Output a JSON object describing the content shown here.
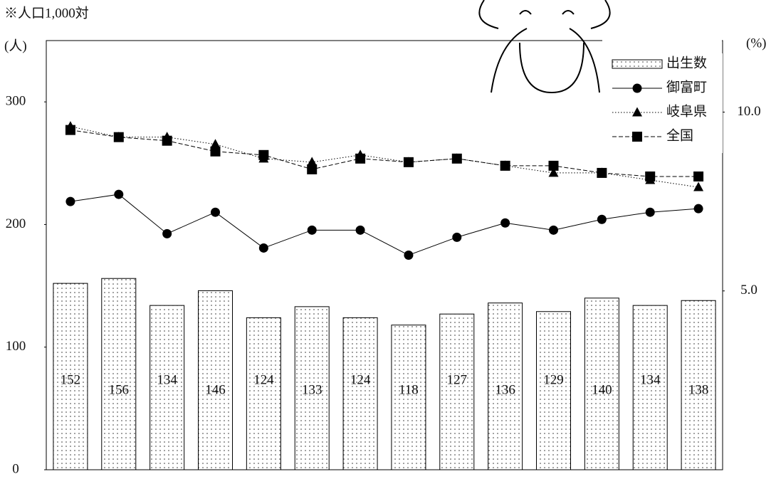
{
  "chart_data": {
    "type": "bar",
    "note": "※人口1,000対",
    "ylabel": "(人)",
    "y2label": "(%)",
    "categories": [
      null,
      null,
      null,
      null,
      null,
      null,
      null,
      null,
      null,
      null,
      null,
      null,
      null,
      null
    ],
    "ylim": [
      0,
      350
    ],
    "yticks": [
      0,
      100,
      200,
      300
    ],
    "y2lim": [
      0,
      12
    ],
    "y2ticks": [
      {
        "value": 5,
        "label": "5.0"
      },
      {
        "value": 10,
        "label": "10.0"
      }
    ],
    "series": [
      {
        "name": "出生数",
        "type": "bar",
        "color": "#000000",
        "values": [
          152,
          156,
          134,
          146,
          124,
          133,
          124,
          118,
          127,
          136,
          129,
          140,
          134,
          138
        ]
      },
      {
        "name": "御富町",
        "type": "line",
        "axis": "y2",
        "marker": "circle",
        "dash": "solid",
        "color": "#000000",
        "values": [
          7.5,
          7.7,
          6.6,
          7.2,
          6.2,
          6.7,
          6.7,
          6.0,
          6.5,
          6.9,
          6.7,
          7.0,
          7.2,
          7.3
        ]
      },
      {
        "name": "岐阜県",
        "type": "line",
        "axis": "y2",
        "marker": "triangle",
        "dash": "dotted",
        "color": "#000000",
        "values": [
          9.6,
          9.3,
          9.3,
          9.1,
          8.7,
          8.6,
          8.8,
          8.6,
          8.7,
          8.5,
          8.3,
          8.3,
          8.1,
          7.9
        ]
      },
      {
        "name": "全国",
        "type": "line",
        "axis": "y2",
        "marker": "square",
        "dash": "dashed",
        "color": "#000000",
        "values": [
          9.5,
          9.3,
          9.2,
          8.9,
          8.8,
          8.4,
          8.7,
          8.6,
          8.7,
          8.5,
          8.5,
          8.3,
          8.2,
          8.2
        ]
      }
    ]
  }
}
